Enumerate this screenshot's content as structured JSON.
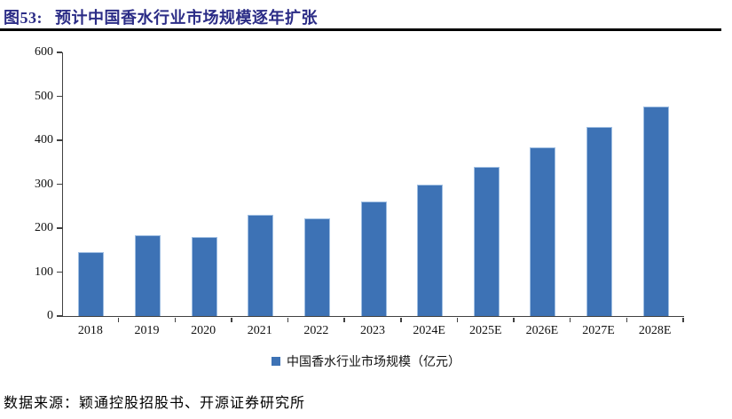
{
  "figure": {
    "number_label": "图53:",
    "title": "预计中国香水行业市场规模逐年扩张"
  },
  "chart_data": {
    "type": "bar",
    "title": "预计中国香水行业市场规模逐年扩张",
    "categories": [
      "2018",
      "2019",
      "2020",
      "2021",
      "2022",
      "2023",
      "2024E",
      "2025E",
      "2026E",
      "2027E",
      "2028E"
    ],
    "values": [
      146,
      183,
      180,
      231,
      222,
      261,
      298,
      340,
      383,
      430,
      477
    ],
    "series_name": "中国香水行业市场规模（亿元）",
    "unit": "亿元",
    "xlabel": "",
    "ylabel": "",
    "ylim": [
      0,
      600
    ],
    "ytick_step": 100,
    "yticks": [
      0,
      100,
      200,
      300,
      400,
      500,
      600
    ],
    "grid": false,
    "legend_position": "bottom"
  },
  "legend": {
    "label": "中国香水行业市场规模（亿元）"
  },
  "source": {
    "text": "数据来源：颖通控股招股书、开源证券研究所"
  },
  "colors": {
    "title": "#2B2C86",
    "rule": "#000000",
    "bar_fill": "#3D72B5",
    "bar_border": "#9FBEE2",
    "axis": "#404040"
  }
}
